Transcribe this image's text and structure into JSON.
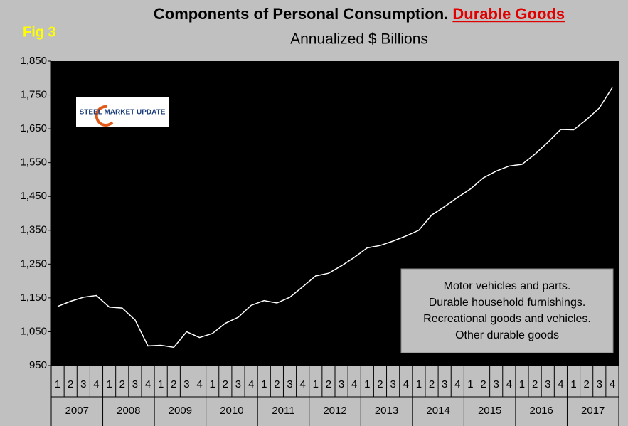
{
  "chart_data": {
    "type": "line",
    "title": "Components of Personal Consumption.",
    "title_highlight": "Durable Goods",
    "subtitle": "Annualized $ Billions",
    "figure_label": "Fig 3",
    "logo": "STEEL MARKET UPDATE",
    "annotation_lines": [
      "Motor vehicles and parts.",
      "Durable household furnishings.",
      "Recreational goods and vehicles.",
      "Other durable goods"
    ],
    "categories": [
      "1",
      "2",
      "3",
      "4",
      "1",
      "2",
      "3",
      "4",
      "1",
      "2",
      "3",
      "4",
      "1",
      "2",
      "3",
      "4",
      "1",
      "2",
      "3",
      "4",
      "1",
      "2",
      "3",
      "4",
      "1",
      "2",
      "3",
      "4",
      "1",
      "2",
      "3",
      "4",
      "1",
      "2",
      "3",
      "4",
      "1",
      "2",
      "3",
      "4",
      "1",
      "2",
      "3",
      "4"
    ],
    "year_groups": [
      "2007",
      "2008",
      "2009",
      "2010",
      "2011",
      "2012",
      "2013",
      "2014",
      "2015",
      "2016",
      "2017"
    ],
    "values": [
      1125,
      1140,
      1152,
      1157,
      1123,
      1120,
      1085,
      1008,
      1010,
      1004,
      1050,
      1033,
      1045,
      1075,
      1093,
      1128,
      1142,
      1135,
      1152,
      1183,
      1215,
      1223,
      1245,
      1270,
      1298,
      1305,
      1318,
      1333,
      1350,
      1395,
      1420,
      1447,
      1472,
      1505,
      1525,
      1540,
      1545,
      1575,
      1610,
      1648,
      1647,
      1677,
      1712,
      1772
    ],
    "color": "#ffffff",
    "ylim": [
      950,
      1850
    ],
    "yticks": [
      950,
      {
        "value": 1050,
        "label": "1,050"
      },
      {
        "value": 1150,
        "label": "1,150"
      },
      {
        "value": 1250,
        "label": "1,250"
      },
      {
        "value": 1350,
        "label": "1,350"
      },
      {
        "value": 1450,
        "label": "1,450"
      },
      {
        "value": 1550,
        "label": "1,550"
      },
      {
        "value": 1650,
        "label": "1,650"
      },
      {
        "value": 1750,
        "label": "1,750"
      },
      {
        "value": 1850,
        "label": "1,850"
      }
    ],
    "grid": false
  }
}
